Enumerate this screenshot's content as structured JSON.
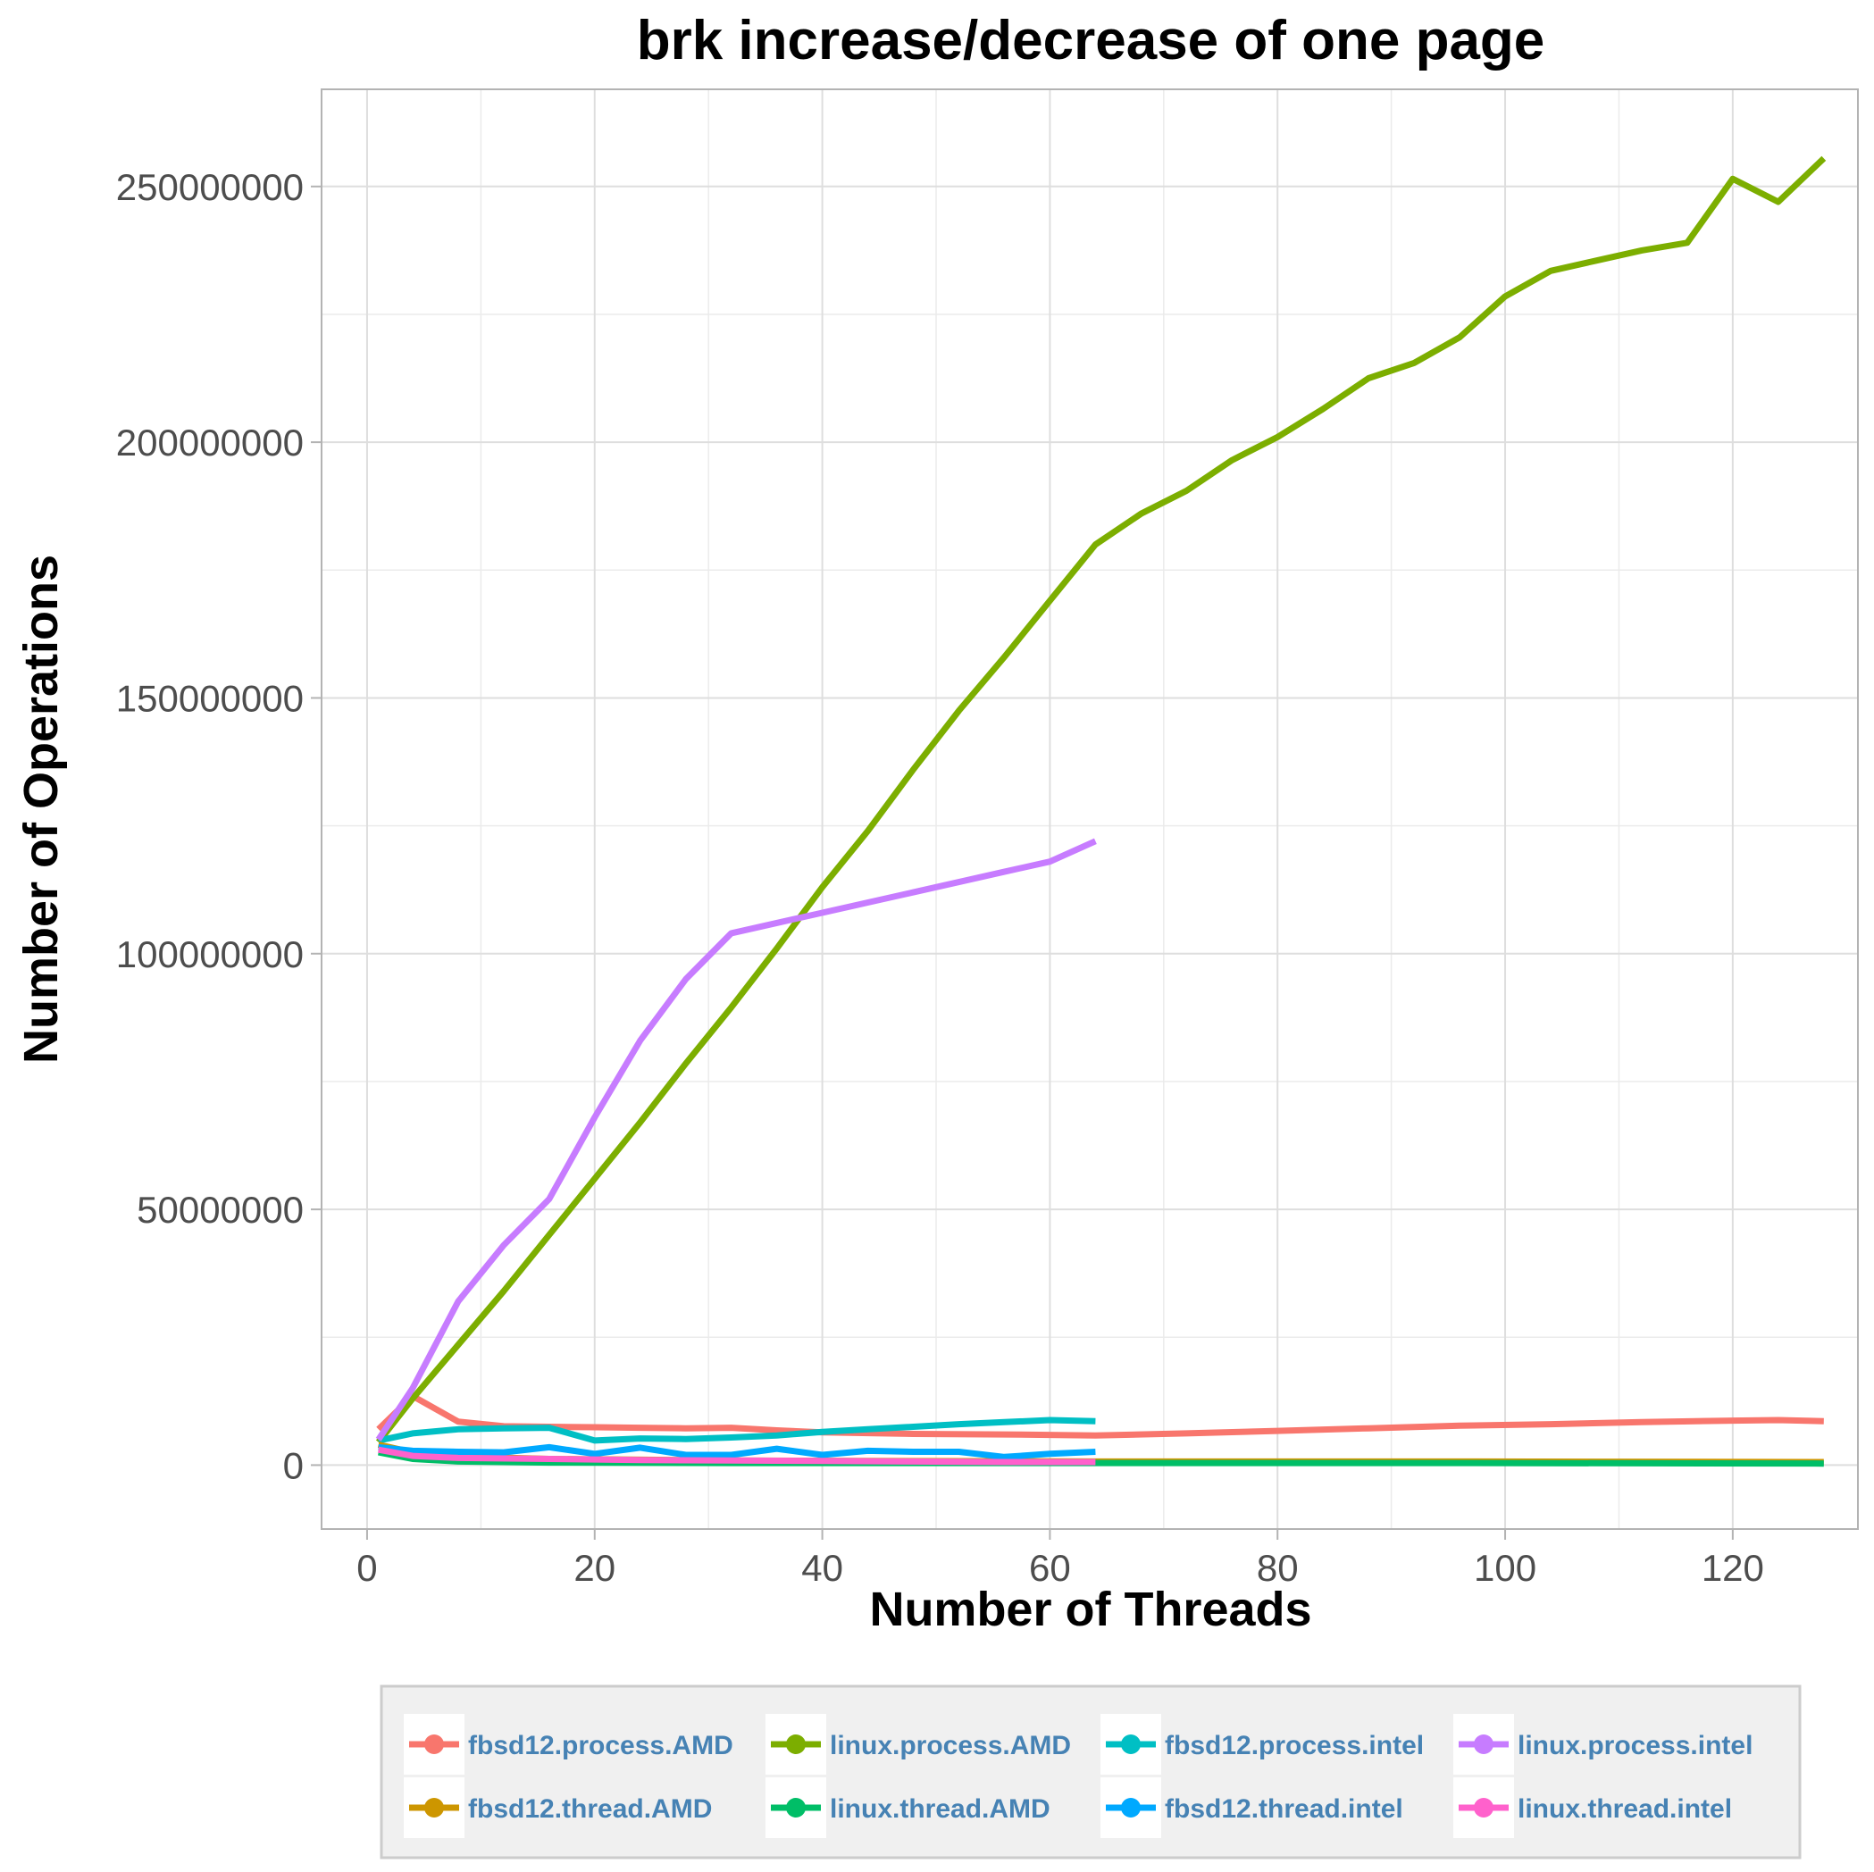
{
  "chart_data": {
    "type": "line",
    "title": "brk increase/decrease of one page",
    "xlabel": "Number of Threads",
    "ylabel": "Number of Operations",
    "xlim": [
      -4,
      131
    ],
    "ylim": [
      -12500000,
      269000000
    ],
    "xticks": [
      0,
      20,
      40,
      60,
      80,
      100,
      120
    ],
    "xtick_labels": [
      "0",
      "20",
      "40",
      "60",
      "80",
      "100",
      "120"
    ],
    "yticks": [
      0,
      50000000,
      100000000,
      150000000,
      200000000,
      250000000
    ],
    "ytick_labels": [
      "0",
      "50000000",
      "100000000",
      "150000000",
      "200000000",
      "250000000"
    ],
    "grid": true,
    "legend_position": "bottom",
    "series": [
      {
        "name": "fbsd12.process.AMD",
        "color": "#F8766D",
        "x": [
          1,
          4,
          8,
          12,
          16,
          20,
          24,
          28,
          32,
          36,
          40,
          48,
          56,
          64,
          72,
          80,
          88,
          96,
          104,
          112,
          120,
          124,
          128
        ],
        "y": [
          7000000,
          13500000,
          8500000,
          7600000,
          7500000,
          7400000,
          7300000,
          7200000,
          7300000,
          6800000,
          6400000,
          6100000,
          6000000,
          5800000,
          6200000,
          6700000,
          7200000,
          7700000,
          8000000,
          8400000,
          8700000,
          8800000,
          8600000
        ]
      },
      {
        "name": "linux.process.AMD",
        "color": "#7CAE00",
        "x": [
          1,
          4,
          8,
          12,
          16,
          20,
          24,
          28,
          32,
          36,
          40,
          44,
          48,
          52,
          56,
          60,
          64,
          68,
          72,
          76,
          80,
          84,
          88,
          92,
          96,
          100,
          104,
          108,
          112,
          116,
          120,
          124,
          128
        ],
        "y": [
          4500000,
          13000000,
          23500000,
          34000000,
          45000000,
          56000000,
          67000000,
          78500000,
          89500000,
          101000000,
          113000000,
          124000000,
          136000000,
          147500000,
          158000000,
          169000000,
          180000000,
          186000000,
          190500000,
          196500000,
          201000000,
          206500000,
          212500000,
          215500000,
          220500000,
          228500000,
          233500000,
          235500000,
          237500000,
          239000000,
          251500000,
          247000000,
          255500000
        ]
      },
      {
        "name": "fbsd12.process.intel",
        "color": "#00BFC4",
        "x": [
          1,
          4,
          8,
          12,
          16,
          20,
          24,
          28,
          32,
          36,
          40,
          44,
          48,
          52,
          56,
          60,
          64
        ],
        "y": [
          4800000,
          6200000,
          7000000,
          7200000,
          7300000,
          4800000,
          5200000,
          5100000,
          5400000,
          5800000,
          6500000,
          7000000,
          7500000,
          8000000,
          8400000,
          8800000,
          8600000
        ]
      },
      {
        "name": "linux.process.intel",
        "color": "#C77CFF",
        "x": [
          1,
          4,
          8,
          12,
          16,
          20,
          24,
          28,
          32,
          36,
          40,
          44,
          48,
          52,
          56,
          60,
          64
        ],
        "y": [
          5000000,
          15000000,
          32000000,
          43000000,
          52000000,
          68000000,
          83000000,
          95000000,
          104000000,
          106000000,
          108000000,
          110000000,
          112000000,
          114000000,
          116000000,
          118000000,
          122000000
        ]
      },
      {
        "name": "fbsd12.thread.AMD",
        "color": "#CD9600",
        "x": [
          1,
          4,
          8,
          16,
          32,
          64,
          96,
          128
        ],
        "y": [
          4000000,
          2500000,
          1700000,
          1200000,
          900000,
          700000,
          700000,
          600000
        ]
      },
      {
        "name": "linux.thread.AMD",
        "color": "#00BE67",
        "x": [
          1,
          4,
          8,
          16,
          32,
          64,
          96,
          128
        ],
        "y": [
          2500000,
          1200000,
          700000,
          500000,
          400000,
          400000,
          400000,
          300000
        ]
      },
      {
        "name": "fbsd12.thread.intel",
        "color": "#00A9FF",
        "x": [
          1,
          4,
          8,
          12,
          16,
          20,
          24,
          28,
          32,
          36,
          40,
          44,
          48,
          52,
          56,
          60,
          64
        ],
        "y": [
          3500000,
          2800000,
          2600000,
          2500000,
          3500000,
          2200000,
          3400000,
          2000000,
          2000000,
          3200000,
          2000000,
          2800000,
          2600000,
          2600000,
          1600000,
          2200000,
          2600000
        ]
      },
      {
        "name": "linux.thread.intel",
        "color": "#FF61CC",
        "x": [
          1,
          4,
          8,
          16,
          24,
          32,
          40,
          48,
          56,
          64
        ],
        "y": [
          3000000,
          1800000,
          1400000,
          1200000,
          1000000,
          900000,
          800000,
          700000,
          600000,
          600000
        ]
      }
    ]
  }
}
